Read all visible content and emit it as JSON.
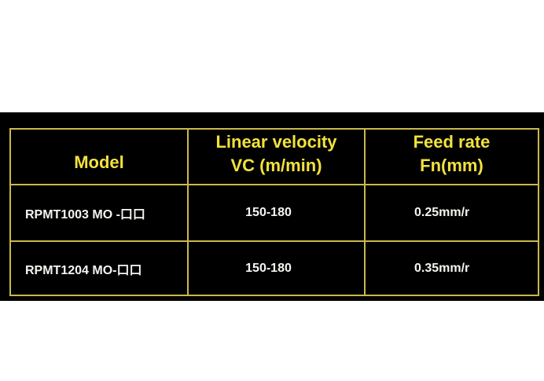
{
  "table": {
    "header": [
      [
        "Model"
      ],
      [
        "Linear velocity",
        "VC (m/min)"
      ],
      [
        "Feed rate",
        "Fn(mm)"
      ]
    ],
    "rows": [
      [
        "RPMT1003 MO -口口",
        "150-180",
        "0.25mm/r"
      ],
      [
        "RPMT1204 MO-口口",
        "150-180",
        "0.35mm/r"
      ]
    ]
  }
}
